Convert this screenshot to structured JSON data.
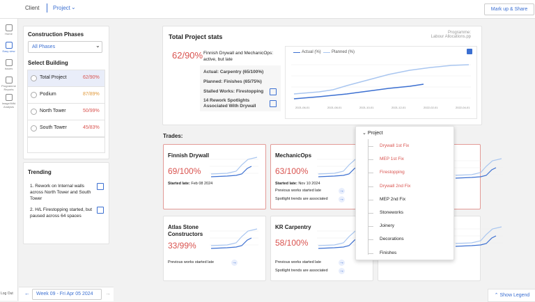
{
  "top_bar": {
    "client": "Client",
    "project": "Project",
    "share_button": "Mark up & Share"
  },
  "nav": {
    "items": [
      "Home",
      "Easy view",
      "Issues",
      "Programme Reports",
      "Image/Wiki Analysis"
    ],
    "logout": "Log Out"
  },
  "sidebar": {
    "phases_title": "Construction Phases",
    "phase_select": "All Phases",
    "building_title": "Select Building",
    "buildings": [
      {
        "name": "Total Project",
        "progress": "62/90%"
      },
      {
        "name": "Podium",
        "progress": "87/89%"
      },
      {
        "name": "North Tower",
        "progress": "50/99%"
      },
      {
        "name": "South Tower",
        "progress": "45/83%"
      }
    ],
    "trending_title": "Trending",
    "trending": [
      "1. Rework on Internal walls across North Tower and South Tower",
      "2. H/L Firestopping started, but paused across 64 spaces"
    ]
  },
  "week_selector": "Week 09 - Fri Apr 05 2024",
  "stats": {
    "title": "Total Project stats",
    "programme_label": "Programme:",
    "programme_file": "Labour Allocations.pp",
    "progress": "62/90%",
    "summary": "Finnish Drywall and MechanicOps: active, but late",
    "actual": "Actual: Carpentry (65/100%)",
    "planned": "Planned: Finishes (65/75%)",
    "stalled": "Stalled Works: Firestopping",
    "rework": "14 Rework Spotlights Associated With Drywall",
    "legend": [
      "Actual (%)",
      "Planned (%)"
    ],
    "dates": [
      "2021-06-01",
      "2021-08-01",
      "2021-10-01",
      "2021-12-01",
      "2022-02-01",
      "2022-04-01"
    ]
  },
  "trades": {
    "title": "Trades:",
    "cards": [
      {
        "name": "Finnish Drywall",
        "progress": "69/100%",
        "started": "Started late:",
        "date": "Feb 08 2024"
      },
      {
        "name": "MechanicOps",
        "progress": "63/100%",
        "started": "Started late:",
        "date": "Nov 10 2024",
        "notes": [
          "Previous works started late",
          "Spotlight trends are associated"
        ]
      },
      {
        "name": "Atlas Stone Constructors",
        "progress": "33/99%",
        "notes": [
          "Previous works started late"
        ]
      },
      {
        "name": "KR Carpentry",
        "progress": "58/100%",
        "notes": [
          "Previous works started late",
          "Spotlight trends are associated"
        ]
      }
    ]
  },
  "dropdown": {
    "title": "Project",
    "items": [
      "Drywall 1st Fix",
      "MEP 1st Fix",
      "Firestopping",
      "Drywall 2nd Fix",
      "MEP 2nd Fix",
      "Stoneworks",
      "Joinery",
      "Decorations",
      "Finishes"
    ]
  },
  "show_legend": "Show Legend"
}
